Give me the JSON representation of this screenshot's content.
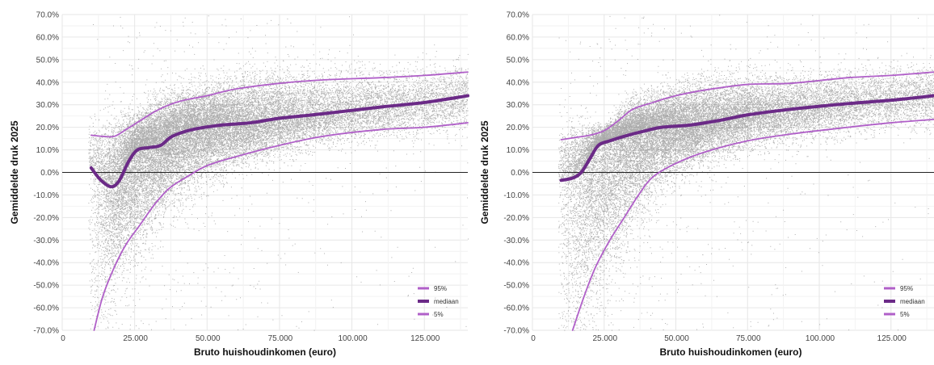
{
  "chart_data": [
    {
      "type": "scatter",
      "title": "",
      "xlabel": "Bruto huishoudinkomen (euro)",
      "ylabel": "Gemiddelde druk 2025",
      "xlim": [
        0,
        140000
      ],
      "ylim": [
        -70,
        70
      ],
      "grid": true,
      "legend_position": "bottom-right",
      "x_ticks": [
        0,
        25000,
        50000,
        75000,
        100000,
        125000
      ],
      "x_tick_labels": [
        "0",
        "25.000",
        "50.000",
        "75.000",
        "100.000",
        "125.000"
      ],
      "y_ticks": [
        70,
        60,
        50,
        40,
        30,
        20,
        10,
        0,
        -10,
        -20,
        -30,
        -40,
        -50,
        -60,
        -70
      ],
      "y_tick_labels": [
        "70.0%",
        "60.0%",
        "50.0%",
        "40.0%",
        "30.0%",
        "20.0%",
        "10.0%",
        "0.0%",
        "-10.0%",
        "-20.0%",
        "-30.0%",
        "-40.0%",
        "-50.0%",
        "-60.0%",
        "-70.0%"
      ],
      "zero_line": 0,
      "series": [
        {
          "name": "95%",
          "color": "#b05fc8",
          "x": [
            10000,
            14000,
            18000,
            22000,
            27000,
            32000,
            37000,
            42000,
            50000,
            60000,
            75000,
            90000,
            110000,
            125000,
            140000
          ],
          "values": [
            16.5,
            16,
            16,
            19,
            23,
            27,
            30,
            32,
            34,
            37,
            39.5,
            41,
            42,
            43,
            44.5
          ]
        },
        {
          "name": "mediaan",
          "color": "#6b2a87",
          "x": [
            10000,
            13000,
            16000,
            18000,
            20000,
            23000,
            26000,
            30000,
            34000,
            38000,
            45000,
            55000,
            65000,
            75000,
            90000,
            110000,
            125000,
            140000
          ],
          "values": [
            2,
            -3,
            -6,
            -6,
            -3,
            5,
            10,
            11,
            12,
            16,
            19,
            21,
            22,
            24,
            26,
            29,
            31,
            34
          ]
        },
        {
          "name": "5%",
          "color": "#b05fc8",
          "x": [
            11000,
            14000,
            18000,
            22000,
            27000,
            32000,
            37000,
            43000,
            50000,
            60000,
            75000,
            90000,
            110000,
            125000,
            140000
          ],
          "values": [
            -70,
            -55,
            -42,
            -32,
            -23,
            -14,
            -7,
            -2,
            3,
            7,
            12,
            16,
            19,
            20,
            22
          ]
        }
      ]
    },
    {
      "type": "scatter",
      "title": "",
      "xlabel": "Bruto huishoudinkomen (euro)",
      "ylabel": "Gemiddelde druk 2025",
      "xlim": [
        0,
        140000
      ],
      "ylim": [
        -70,
        70
      ],
      "grid": true,
      "legend_position": "bottom-right",
      "x_ticks": [
        0,
        25000,
        50000,
        75000,
        100000,
        125000
      ],
      "x_tick_labels": [
        "0",
        "25.000",
        "50.000",
        "75.000",
        "100.000",
        "125.000"
      ],
      "y_ticks": [
        70,
        60,
        50,
        40,
        30,
        20,
        10,
        0,
        -10,
        -20,
        -30,
        -40,
        -50,
        -60,
        -70
      ],
      "y_tick_labels": [
        "70.0%",
        "60.0%",
        "50.0%",
        "40.0%",
        "30.0%",
        "20.0%",
        "10.0%",
        "0.0%",
        "-10.0%",
        "-20.0%",
        "-30.0%",
        "-40.0%",
        "-50.0%",
        "-60.0%",
        "-70.0%"
      ],
      "zero_line": 0,
      "series": [
        {
          "name": "95%",
          "color": "#b05fc8",
          "x": [
            10000,
            15000,
            20000,
            25000,
            30000,
            35000,
            42000,
            50000,
            60000,
            75000,
            90000,
            110000,
            125000,
            140000
          ],
          "values": [
            14.5,
            15.5,
            16.5,
            18.5,
            23,
            28,
            31,
            34,
            36.5,
            39,
            39.5,
            42,
            43,
            44.5
          ]
        },
        {
          "name": "mediaan",
          "color": "#6b2a87",
          "x": [
            10000,
            14000,
            17000,
            20000,
            23000,
            27000,
            32000,
            38000,
            45000,
            55000,
            65000,
            75000,
            90000,
            110000,
            125000,
            140000
          ],
          "values": [
            -3.5,
            -2.5,
            0,
            6,
            12,
            14,
            16,
            18,
            20,
            21,
            23,
            25.5,
            28,
            30.5,
            32,
            34
          ]
        },
        {
          "name": "5%",
          "color": "#b05fc8",
          "x": [
            14000,
            18000,
            22000,
            27000,
            32000,
            37000,
            42000,
            50000,
            60000,
            75000,
            90000,
            110000,
            125000,
            140000
          ],
          "values": [
            -70,
            -55,
            -42,
            -30,
            -20,
            -10,
            -2,
            4,
            9,
            14,
            17,
            20,
            22,
            23.5
          ]
        }
      ]
    }
  ]
}
